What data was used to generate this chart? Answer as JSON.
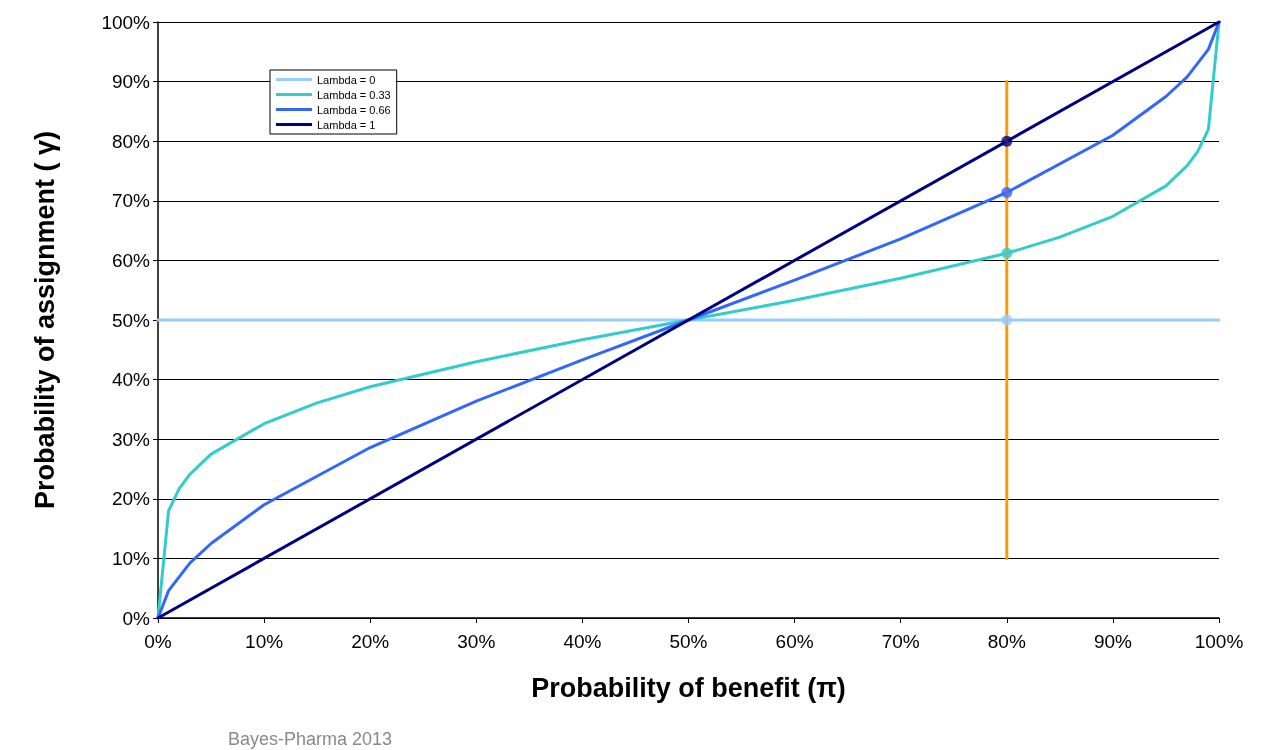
{
  "chart_data": {
    "type": "line",
    "xlabel": "Probability of benefit (π)",
    "ylabel": "Probability of assignment ( γ)",
    "xlim": [
      0,
      100
    ],
    "ylim": [
      0,
      100
    ],
    "xticks": [
      {
        "value": 0,
        "label": "0%"
      },
      {
        "value": 10,
        "label": "10%"
      },
      {
        "value": 20,
        "label": "20%"
      },
      {
        "value": 30,
        "label": "30%"
      },
      {
        "value": 40,
        "label": "40%"
      },
      {
        "value": 50,
        "label": "50%"
      },
      {
        "value": 60,
        "label": "60%"
      },
      {
        "value": 70,
        "label": "70%"
      },
      {
        "value": 80,
        "label": "80%"
      },
      {
        "value": 90,
        "label": "90%"
      },
      {
        "value": 100,
        "label": "100%"
      }
    ],
    "yticks": [
      {
        "value": 0,
        "label": "0%"
      },
      {
        "value": 10,
        "label": "10%"
      },
      {
        "value": 20,
        "label": "20%"
      },
      {
        "value": 30,
        "label": "30%"
      },
      {
        "value": 40,
        "label": "40%"
      },
      {
        "value": 50,
        "label": "50%"
      },
      {
        "value": 60,
        "label": "60%"
      },
      {
        "value": 70,
        "label": "70%"
      },
      {
        "value": 80,
        "label": "80%"
      },
      {
        "value": 90,
        "label": "90%"
      },
      {
        "value": 100,
        "label": "100%"
      }
    ],
    "grid": "y",
    "legend": "top left",
    "marker": "none",
    "line_style": "solid",
    "series": [
      {
        "name": "Lambda = 0",
        "color": "#99ccff",
        "x": [
          0,
          100
        ],
        "values": [
          50,
          50
        ]
      },
      {
        "name": "Lambda = 0.33",
        "color": "#33cccc",
        "x": [
          0,
          1,
          2,
          3,
          5,
          10,
          15,
          20,
          30,
          40,
          50,
          60,
          70,
          80,
          85,
          90,
          95,
          97,
          98,
          99,
          100
        ],
        "values": [
          0,
          18,
          21.7,
          24.1,
          27.5,
          32.6,
          36.1,
          38.8,
          43,
          46.7,
          50,
          53.3,
          57,
          61.2,
          63.9,
          67.4,
          72.5,
          75.9,
          78.3,
          82,
          100
        ]
      },
      {
        "name": "Lambda = 0.66",
        "color": "#3366ff",
        "x": [
          0,
          1,
          3,
          5,
          10,
          20,
          30,
          40,
          50,
          60,
          70,
          80,
          90,
          95,
          97,
          99,
          100
        ],
        "values": [
          0,
          4.6,
          9.2,
          12.5,
          19,
          28.6,
          36.4,
          43.3,
          50,
          56.7,
          63.6,
          71.4,
          81,
          87.5,
          90.8,
          95.4,
          100
        ]
      },
      {
        "name": "Lambda = 1",
        "color": "#000080",
        "x": [
          0,
          100
        ],
        "values": [
          0,
          100
        ]
      },
      {
        "color": "#ff9900",
        "x": [
          80,
          80
        ],
        "values": [
          10,
          90
        ]
      },
      {
        "type": "scatter",
        "marker": "circle",
        "color": "#3366ff",
        "colors": [
          "#99ccff",
          "#33cccc",
          "#3366ff",
          "#000080"
        ],
        "x": [
          80,
          80,
          80,
          80
        ],
        "values": [
          50,
          61.2,
          71.4,
          80
        ]
      }
    ],
    "annotations": [
      "Bayes-Pharma 2013"
    ]
  }
}
